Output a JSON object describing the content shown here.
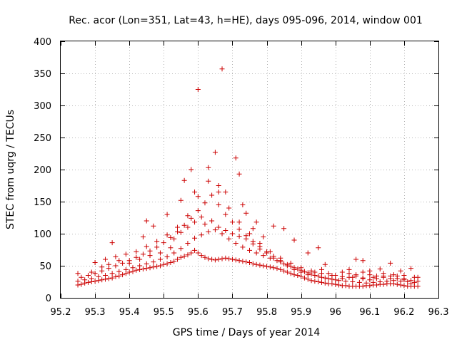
{
  "chart_data": {
    "type": "scatter",
    "title": "Rec. acor (Lon=351, Lat=43, h=HE), days 095-096, 2014, window 001",
    "xlabel": "GPS time / Days of year 2014",
    "ylabel": "STEC from uqrg / TECUs",
    "xlim": [
      95.2,
      96.3
    ],
    "ylim": [
      0,
      400
    ],
    "xticks": [
      95.2,
      95.3,
      95.4,
      95.5,
      95.6,
      95.7,
      95.8,
      95.9,
      96.0,
      96.1,
      96.2,
      96.3
    ],
    "xtick_labels": [
      "95.2",
      "95.3",
      "95.4",
      "95.5",
      "95.6",
      "95.7",
      "95.8",
      "95.9",
      "96",
      "96.1",
      "96.2",
      "96.3"
    ],
    "yticks": [
      0,
      50,
      100,
      150,
      200,
      250,
      300,
      350,
      400
    ],
    "ytick_labels": [
      "0",
      "50",
      "100",
      "150",
      "200",
      "250",
      "300",
      "350",
      "400"
    ],
    "grid": true,
    "marker": "+",
    "color": "#cc0000",
    "series": [
      {
        "name": "STEC",
        "points": [
          [
            95.25,
            20
          ],
          [
            95.26,
            21
          ],
          [
            95.27,
            23
          ],
          [
            95.28,
            24
          ],
          [
            95.29,
            25
          ],
          [
            95.3,
            26
          ],
          [
            95.31,
            27
          ],
          [
            95.32,
            28
          ],
          [
            95.33,
            29
          ],
          [
            95.34,
            30
          ],
          [
            95.35,
            31
          ],
          [
            95.36,
            33
          ],
          [
            95.37,
            34
          ],
          [
            95.38,
            36
          ],
          [
            95.39,
            38
          ],
          [
            95.4,
            40
          ],
          [
            95.41,
            41
          ],
          [
            95.42,
            43
          ],
          [
            95.43,
            44
          ],
          [
            95.44,
            45
          ],
          [
            95.45,
            46
          ],
          [
            95.46,
            47
          ],
          [
            95.47,
            48
          ],
          [
            95.48,
            49
          ],
          [
            95.49,
            50
          ],
          [
            95.5,
            52
          ],
          [
            95.51,
            53
          ],
          [
            95.52,
            55
          ],
          [
            95.53,
            57
          ],
          [
            95.54,
            60
          ],
          [
            95.55,
            63
          ],
          [
            95.56,
            65
          ],
          [
            95.57,
            67
          ],
          [
            95.58,
            70
          ],
          [
            95.59,
            74
          ],
          [
            95.6,
            70
          ],
          [
            95.61,
            66
          ],
          [
            95.62,
            63
          ],
          [
            95.63,
            61
          ],
          [
            95.64,
            60
          ],
          [
            95.65,
            59
          ],
          [
            95.66,
            60
          ],
          [
            95.67,
            61
          ],
          [
            95.68,
            62
          ],
          [
            95.69,
            61
          ],
          [
            95.7,
            60
          ],
          [
            95.71,
            59
          ],
          [
            95.72,
            58
          ],
          [
            95.73,
            57
          ],
          [
            95.74,
            56
          ],
          [
            95.75,
            55
          ],
          [
            95.76,
            53
          ],
          [
            95.77,
            52
          ],
          [
            95.78,
            51
          ],
          [
            95.79,
            50
          ],
          [
            95.8,
            49
          ],
          [
            95.81,
            48
          ],
          [
            95.82,
            47
          ],
          [
            95.83,
            46
          ],
          [
            95.84,
            44
          ],
          [
            95.85,
            42
          ],
          [
            95.86,
            40
          ],
          [
            95.87,
            38
          ],
          [
            95.88,
            36
          ],
          [
            95.89,
            35
          ],
          [
            95.9,
            33
          ],
          [
            95.91,
            31
          ],
          [
            95.92,
            29
          ],
          [
            95.93,
            27
          ],
          [
            95.94,
            26
          ],
          [
            95.95,
            25
          ],
          [
            95.96,
            24
          ],
          [
            95.97,
            23
          ],
          [
            95.98,
            22
          ],
          [
            95.99,
            22
          ],
          [
            96.0,
            21
          ],
          [
            96.01,
            20
          ],
          [
            96.02,
            19
          ],
          [
            96.03,
            19
          ],
          [
            96.04,
            18
          ],
          [
            96.05,
            18
          ],
          [
            96.06,
            18
          ],
          [
            96.07,
            18
          ],
          [
            96.08,
            18
          ],
          [
            96.09,
            19
          ],
          [
            96.1,
            19
          ],
          [
            96.11,
            20
          ],
          [
            96.12,
            20
          ],
          [
            96.13,
            21
          ],
          [
            96.14,
            21
          ],
          [
            96.15,
            22
          ],
          [
            96.16,
            22
          ],
          [
            96.17,
            22
          ],
          [
            96.18,
            21
          ],
          [
            96.19,
            20
          ],
          [
            96.2,
            19
          ],
          [
            96.21,
            18
          ],
          [
            96.22,
            18
          ],
          [
            96.23,
            18
          ],
          [
            96.24,
            18
          ],
          [
            95.25,
            26
          ],
          [
            95.27,
            28
          ],
          [
            95.29,
            30
          ],
          [
            95.31,
            33
          ],
          [
            95.33,
            35
          ],
          [
            95.35,
            38
          ],
          [
            95.37,
            41
          ],
          [
            95.39,
            44
          ],
          [
            95.41,
            47
          ],
          [
            95.43,
            50
          ],
          [
            95.45,
            53
          ],
          [
            95.47,
            56
          ],
          [
            95.49,
            60
          ],
          [
            95.51,
            64
          ],
          [
            95.53,
            70
          ],
          [
            95.55,
            77
          ],
          [
            95.57,
            85
          ],
          [
            95.59,
            93
          ],
          [
            95.61,
            98
          ],
          [
            95.63,
            103
          ],
          [
            95.65,
            106
          ],
          [
            95.67,
            100
          ],
          [
            95.69,
            92
          ],
          [
            95.71,
            85
          ],
          [
            95.73,
            79
          ],
          [
            95.75,
            74
          ],
          [
            95.77,
            70
          ],
          [
            95.79,
            66
          ],
          [
            95.81,
            62
          ],
          [
            95.83,
            58
          ],
          [
            95.85,
            53
          ],
          [
            95.87,
            49
          ],
          [
            95.89,
            45
          ],
          [
            95.91,
            41
          ],
          [
            95.93,
            37
          ],
          [
            95.95,
            34
          ],
          [
            95.97,
            31
          ],
          [
            95.99,
            29
          ],
          [
            96.01,
            27
          ],
          [
            96.03,
            26
          ],
          [
            96.05,
            25
          ],
          [
            96.07,
            24
          ],
          [
            96.09,
            23
          ],
          [
            96.11,
            24
          ],
          [
            96.13,
            25
          ],
          [
            96.15,
            26
          ],
          [
            96.17,
            27
          ],
          [
            96.19,
            26
          ],
          [
            96.21,
            25
          ],
          [
            96.23,
            24
          ],
          [
            95.26,
            32
          ],
          [
            95.28,
            35
          ],
          [
            95.3,
            38
          ],
          [
            95.32,
            42
          ],
          [
            95.34,
            46
          ],
          [
            95.36,
            50
          ],
          [
            95.38,
            54
          ],
          [
            95.4,
            58
          ],
          [
            95.42,
            63
          ],
          [
            95.44,
            68
          ],
          [
            95.46,
            73
          ],
          [
            95.48,
            79
          ],
          [
            95.5,
            86
          ],
          [
            95.52,
            94
          ],
          [
            95.54,
            103
          ],
          [
            95.56,
            113
          ],
          [
            95.58,
            124
          ],
          [
            95.6,
            136
          ],
          [
            95.62,
            148
          ],
          [
            95.64,
            160
          ],
          [
            95.66,
            145
          ],
          [
            95.68,
            130
          ],
          [
            95.7,
            118
          ],
          [
            95.72,
            107
          ],
          [
            95.74,
            97
          ],
          [
            95.76,
            88
          ],
          [
            95.78,
            80
          ],
          [
            95.8,
            72
          ],
          [
            95.82,
            65
          ],
          [
            95.84,
            58
          ],
          [
            95.86,
            52
          ],
          [
            95.88,
            47
          ],
          [
            95.9,
            43
          ],
          [
            95.92,
            39
          ],
          [
            95.94,
            35
          ],
          [
            95.96,
            32
          ],
          [
            95.98,
            30
          ],
          [
            96.0,
            28
          ],
          [
            96.02,
            30
          ],
          [
            96.04,
            32
          ],
          [
            96.06,
            34
          ],
          [
            96.08,
            30
          ],
          [
            96.1,
            28
          ],
          [
            96.12,
            30
          ],
          [
            96.14,
            32
          ],
          [
            96.16,
            34
          ],
          [
            96.18,
            30
          ],
          [
            96.2,
            28
          ],
          [
            96.22,
            27
          ],
          [
            96.24,
            26
          ],
          [
            95.3,
            55
          ],
          [
            95.33,
            60
          ],
          [
            95.36,
            64
          ],
          [
            95.39,
            68
          ],
          [
            95.42,
            72
          ],
          [
            95.45,
            80
          ],
          [
            95.48,
            88
          ],
          [
            95.51,
            98
          ],
          [
            95.54,
            110
          ],
          [
            95.57,
            128
          ],
          [
            95.6,
            158
          ],
          [
            95.63,
            182
          ],
          [
            95.66,
            165
          ],
          [
            95.69,
            140
          ],
          [
            95.72,
            118
          ],
          [
            95.75,
            100
          ],
          [
            95.78,
            85
          ],
          [
            95.81,
            72
          ],
          [
            95.84,
            62
          ],
          [
            95.87,
            54
          ],
          [
            95.9,
            47
          ],
          [
            95.93,
            42
          ],
          [
            95.96,
            38
          ],
          [
            95.99,
            35
          ],
          [
            96.02,
            33
          ],
          [
            96.05,
            32
          ],
          [
            96.08,
            31
          ],
          [
            96.11,
            32
          ],
          [
            96.14,
            34
          ],
          [
            96.17,
            36
          ],
          [
            96.2,
            35
          ],
          [
            96.23,
            32
          ],
          [
            95.35,
            86
          ],
          [
            95.44,
            95
          ],
          [
            95.45,
            120
          ],
          [
            95.47,
            112
          ],
          [
            95.51,
            130
          ],
          [
            95.55,
            152
          ],
          [
            95.56,
            183
          ],
          [
            95.58,
            200
          ],
          [
            95.59,
            165
          ],
          [
            95.6,
            325
          ],
          [
            95.63,
            203
          ],
          [
            95.65,
            227
          ],
          [
            95.66,
            175
          ],
          [
            95.67,
            357
          ],
          [
            95.68,
            165
          ],
          [
            95.71,
            218
          ],
          [
            95.72,
            193
          ],
          [
            95.73,
            145
          ],
          [
            95.74,
            132
          ],
          [
            95.76,
            108
          ],
          [
            95.77,
            118
          ],
          [
            95.79,
            95
          ],
          [
            95.82,
            112
          ],
          [
            95.85,
            108
          ],
          [
            95.88,
            90
          ],
          [
            95.92,
            70
          ],
          [
            95.95,
            78
          ],
          [
            95.97,
            52
          ],
          [
            96.04,
            44
          ],
          [
            96.06,
            60
          ],
          [
            96.08,
            58
          ],
          [
            96.1,
            42
          ],
          [
            96.13,
            45
          ],
          [
            96.16,
            54
          ],
          [
            96.19,
            42
          ],
          [
            96.22,
            46
          ],
          [
            96.24,
            32
          ],
          [
            95.25,
            38
          ],
          [
            95.29,
            40
          ],
          [
            95.32,
            48
          ],
          [
            95.34,
            52
          ],
          [
            95.37,
            58
          ],
          [
            95.4,
            54
          ],
          [
            95.43,
            60
          ],
          [
            95.46,
            66
          ],
          [
            95.49,
            70
          ],
          [
            95.52,
            78
          ],
          [
            95.53,
            92
          ],
          [
            95.55,
            102
          ],
          [
            95.57,
            110
          ],
          [
            95.59,
            118
          ],
          [
            95.61,
            126
          ],
          [
            95.62,
            115
          ],
          [
            95.64,
            120
          ],
          [
            95.66,
            110
          ],
          [
            95.68,
            105
          ],
          [
            95.7,
            100
          ],
          [
            95.72,
            96
          ],
          [
            95.74,
            92
          ],
          [
            95.76,
            84
          ],
          [
            95.78,
            76
          ],
          [
            95.8,
            70
          ],
          [
            95.82,
            62
          ],
          [
            95.84,
            56
          ],
          [
            95.86,
            50
          ],
          [
            95.88,
            44
          ],
          [
            95.9,
            40
          ],
          [
            95.92,
            36
          ],
          [
            95.94,
            40
          ],
          [
            95.96,
            44
          ],
          [
            95.98,
            38
          ],
          [
            96.0,
            35
          ],
          [
            96.02,
            40
          ],
          [
            96.04,
            38
          ],
          [
            96.06,
            36
          ],
          [
            96.08,
            40
          ],
          [
            96.1,
            36
          ],
          [
            96.12,
            34
          ],
          [
            96.14,
            38
          ],
          [
            96.16,
            30
          ],
          [
            96.18,
            34
          ],
          [
            96.2,
            30
          ],
          [
            96.22,
            22
          ]
        ]
      }
    ]
  }
}
